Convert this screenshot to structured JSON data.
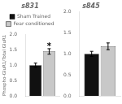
{
  "chart_data": [
    {
      "type": "bar",
      "title": "s831",
      "categories": [
        null
      ],
      "series": [
        {
          "name": "Sham Trained",
          "color": "#111111",
          "values": [
            1.0
          ],
          "errors": [
            0.07
          ]
        },
        {
          "name": "Fear conditioned",
          "color": "#c8c8c8",
          "values": [
            1.45
          ],
          "errors": [
            0.09
          ]
        }
      ],
      "ylabel": "Phospho-GluR1/Total GluR1",
      "ylim": [
        0,
        2.0
      ],
      "yticks": [
        {
          "value": 0,
          "label": "0.0"
        },
        0.5,
        {
          "value": 1,
          "label": "1.0"
        },
        1.5,
        {
          "value": 2,
          "label": "2.0"
        }
      ],
      "grid": false,
      "legend": "top",
      "tick_labels": "y",
      "annotations": [
        {
          "text": "*",
          "series": "Fear conditioned",
          "category": 0
        }
      ]
    },
    {
      "type": "bar",
      "title": "s845",
      "categories": [
        null
      ],
      "series": [
        {
          "color": "#111111",
          "values": [
            1.0
          ],
          "errors": [
            0.06
          ]
        },
        {
          "color": "#c8c8c8",
          "values": [
            1.18
          ],
          "errors": [
            0.08
          ]
        }
      ],
      "ylim": [
        0,
        2.0
      ],
      "yticks": [
        {
          "value": 0,
          "label": "0.0"
        },
        0.5,
        {
          "value": 1,
          "label": "1.0"
        },
        1.5,
        {
          "value": 2,
          "label": "2.0"
        }
      ],
      "grid": false,
      "tick_labels": "y"
    }
  ]
}
